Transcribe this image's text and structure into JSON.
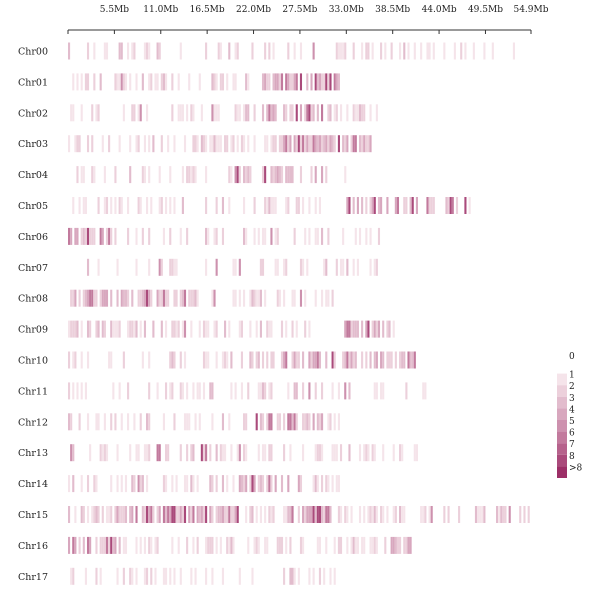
{
  "chart_data": {
    "type": "heatmap",
    "title": "",
    "description_x_unit": "Mb",
    "x_ticks": [
      {
        "pos": 5.5,
        "label": "5.5Mb"
      },
      {
        "pos": 11.0,
        "label": "11.0Mb"
      },
      {
        "pos": 16.5,
        "label": "16.5Mb"
      },
      {
        "pos": 22.0,
        "label": "22.0Mb"
      },
      {
        "pos": 27.5,
        "label": "27.5Mb"
      },
      {
        "pos": 33.0,
        "label": "33.0Mb"
      },
      {
        "pos": 38.5,
        "label": "38.5Mb"
      },
      {
        "pos": 44.0,
        "label": "44.0Mb"
      },
      {
        "pos": 49.5,
        "label": "49.5Mb"
      },
      {
        "pos": 54.9,
        "label": "54.9Mb"
      }
    ],
    "xlim": [
      0,
      54.9
    ],
    "bin_size_mb": 0.25,
    "chromosomes": [
      {
        "name": "Chr00",
        "length": 53.2,
        "seed": 11,
        "density": 0.26,
        "hot": []
      },
      {
        "name": "Chr01",
        "length": 32.4,
        "seed": 23,
        "density": 0.3,
        "hot": [
          [
            22.5,
            32.0
          ]
        ]
      },
      {
        "name": "Chr02",
        "length": 37.5,
        "seed": 37,
        "density": 0.38,
        "hot": [
          [
            21.0,
            31.0
          ]
        ]
      },
      {
        "name": "Chr03",
        "length": 36.0,
        "seed": 41,
        "density": 0.48,
        "hot": [
          [
            25.0,
            36.0
          ]
        ]
      },
      {
        "name": "Chr04",
        "length": 33.0,
        "seed": 53,
        "density": 0.3,
        "hot": [
          [
            20.0,
            30.0
          ]
        ]
      },
      {
        "name": "Chr05",
        "length": 48.0,
        "seed": 67,
        "density": 0.3,
        "hot": [
          [
            33.0,
            47.0
          ]
        ]
      },
      {
        "name": "Chr06",
        "length": 37.5,
        "seed": 71,
        "density": 0.3,
        "hot": [
          [
            0.0,
            6.0
          ]
        ]
      },
      {
        "name": "Chr07",
        "length": 37.0,
        "seed": 83,
        "density": 0.28,
        "hot": []
      },
      {
        "name": "Chr08",
        "length": 32.0,
        "seed": 97,
        "density": 0.36,
        "hot": [
          [
            0.0,
            15.0
          ]
        ]
      },
      {
        "name": "Chr09",
        "length": 39.0,
        "seed": 101,
        "density": 0.34,
        "hot": [
          [
            32.0,
            38.0
          ]
        ]
      },
      {
        "name": "Chr10",
        "length": 41.5,
        "seed": 113,
        "density": 0.34,
        "hot": [
          [
            20.0,
            41.0
          ]
        ]
      },
      {
        "name": "Chr11",
        "length": 43.0,
        "seed": 127,
        "density": 0.32,
        "hot": []
      },
      {
        "name": "Chr12",
        "length": 33.0,
        "seed": 131,
        "density": 0.34,
        "hot": [
          [
            22.0,
            30.0
          ]
        ]
      },
      {
        "name": "Chr13",
        "length": 41.5,
        "seed": 149,
        "density": 0.32,
        "hot": [
          [
            10.0,
            18.0
          ]
        ]
      },
      {
        "name": "Chr14",
        "length": 32.5,
        "seed": 157,
        "density": 0.34,
        "hot": [
          [
            20.0,
            28.0
          ]
        ]
      },
      {
        "name": "Chr15",
        "length": 54.9,
        "seed": 163,
        "density": 0.52,
        "hot": [
          [
            5.0,
            20.0
          ],
          [
            26.0,
            31.0
          ]
        ]
      },
      {
        "name": "Chr16",
        "length": 41.0,
        "seed": 173,
        "density": 0.4,
        "hot": [
          [
            0.0,
            6.0
          ],
          [
            38.0,
            41.0
          ]
        ]
      },
      {
        "name": "Chr17",
        "length": 34.5,
        "seed": 181,
        "density": 0.3,
        "hot": []
      }
    ],
    "legend": {
      "labels": [
        "0",
        "1",
        "2",
        "3",
        "4",
        "5",
        "6",
        "7",
        "8",
        ">8"
      ],
      "colors": [
        "#ffffff",
        "#f5e4ea",
        "#ecd0db",
        "#e2bccd",
        "#d8a7be",
        "#cd91ae",
        "#c27a9d",
        "#b6628c",
        "#aa4a7b",
        "#9c2f67"
      ],
      "position": "right"
    }
  }
}
